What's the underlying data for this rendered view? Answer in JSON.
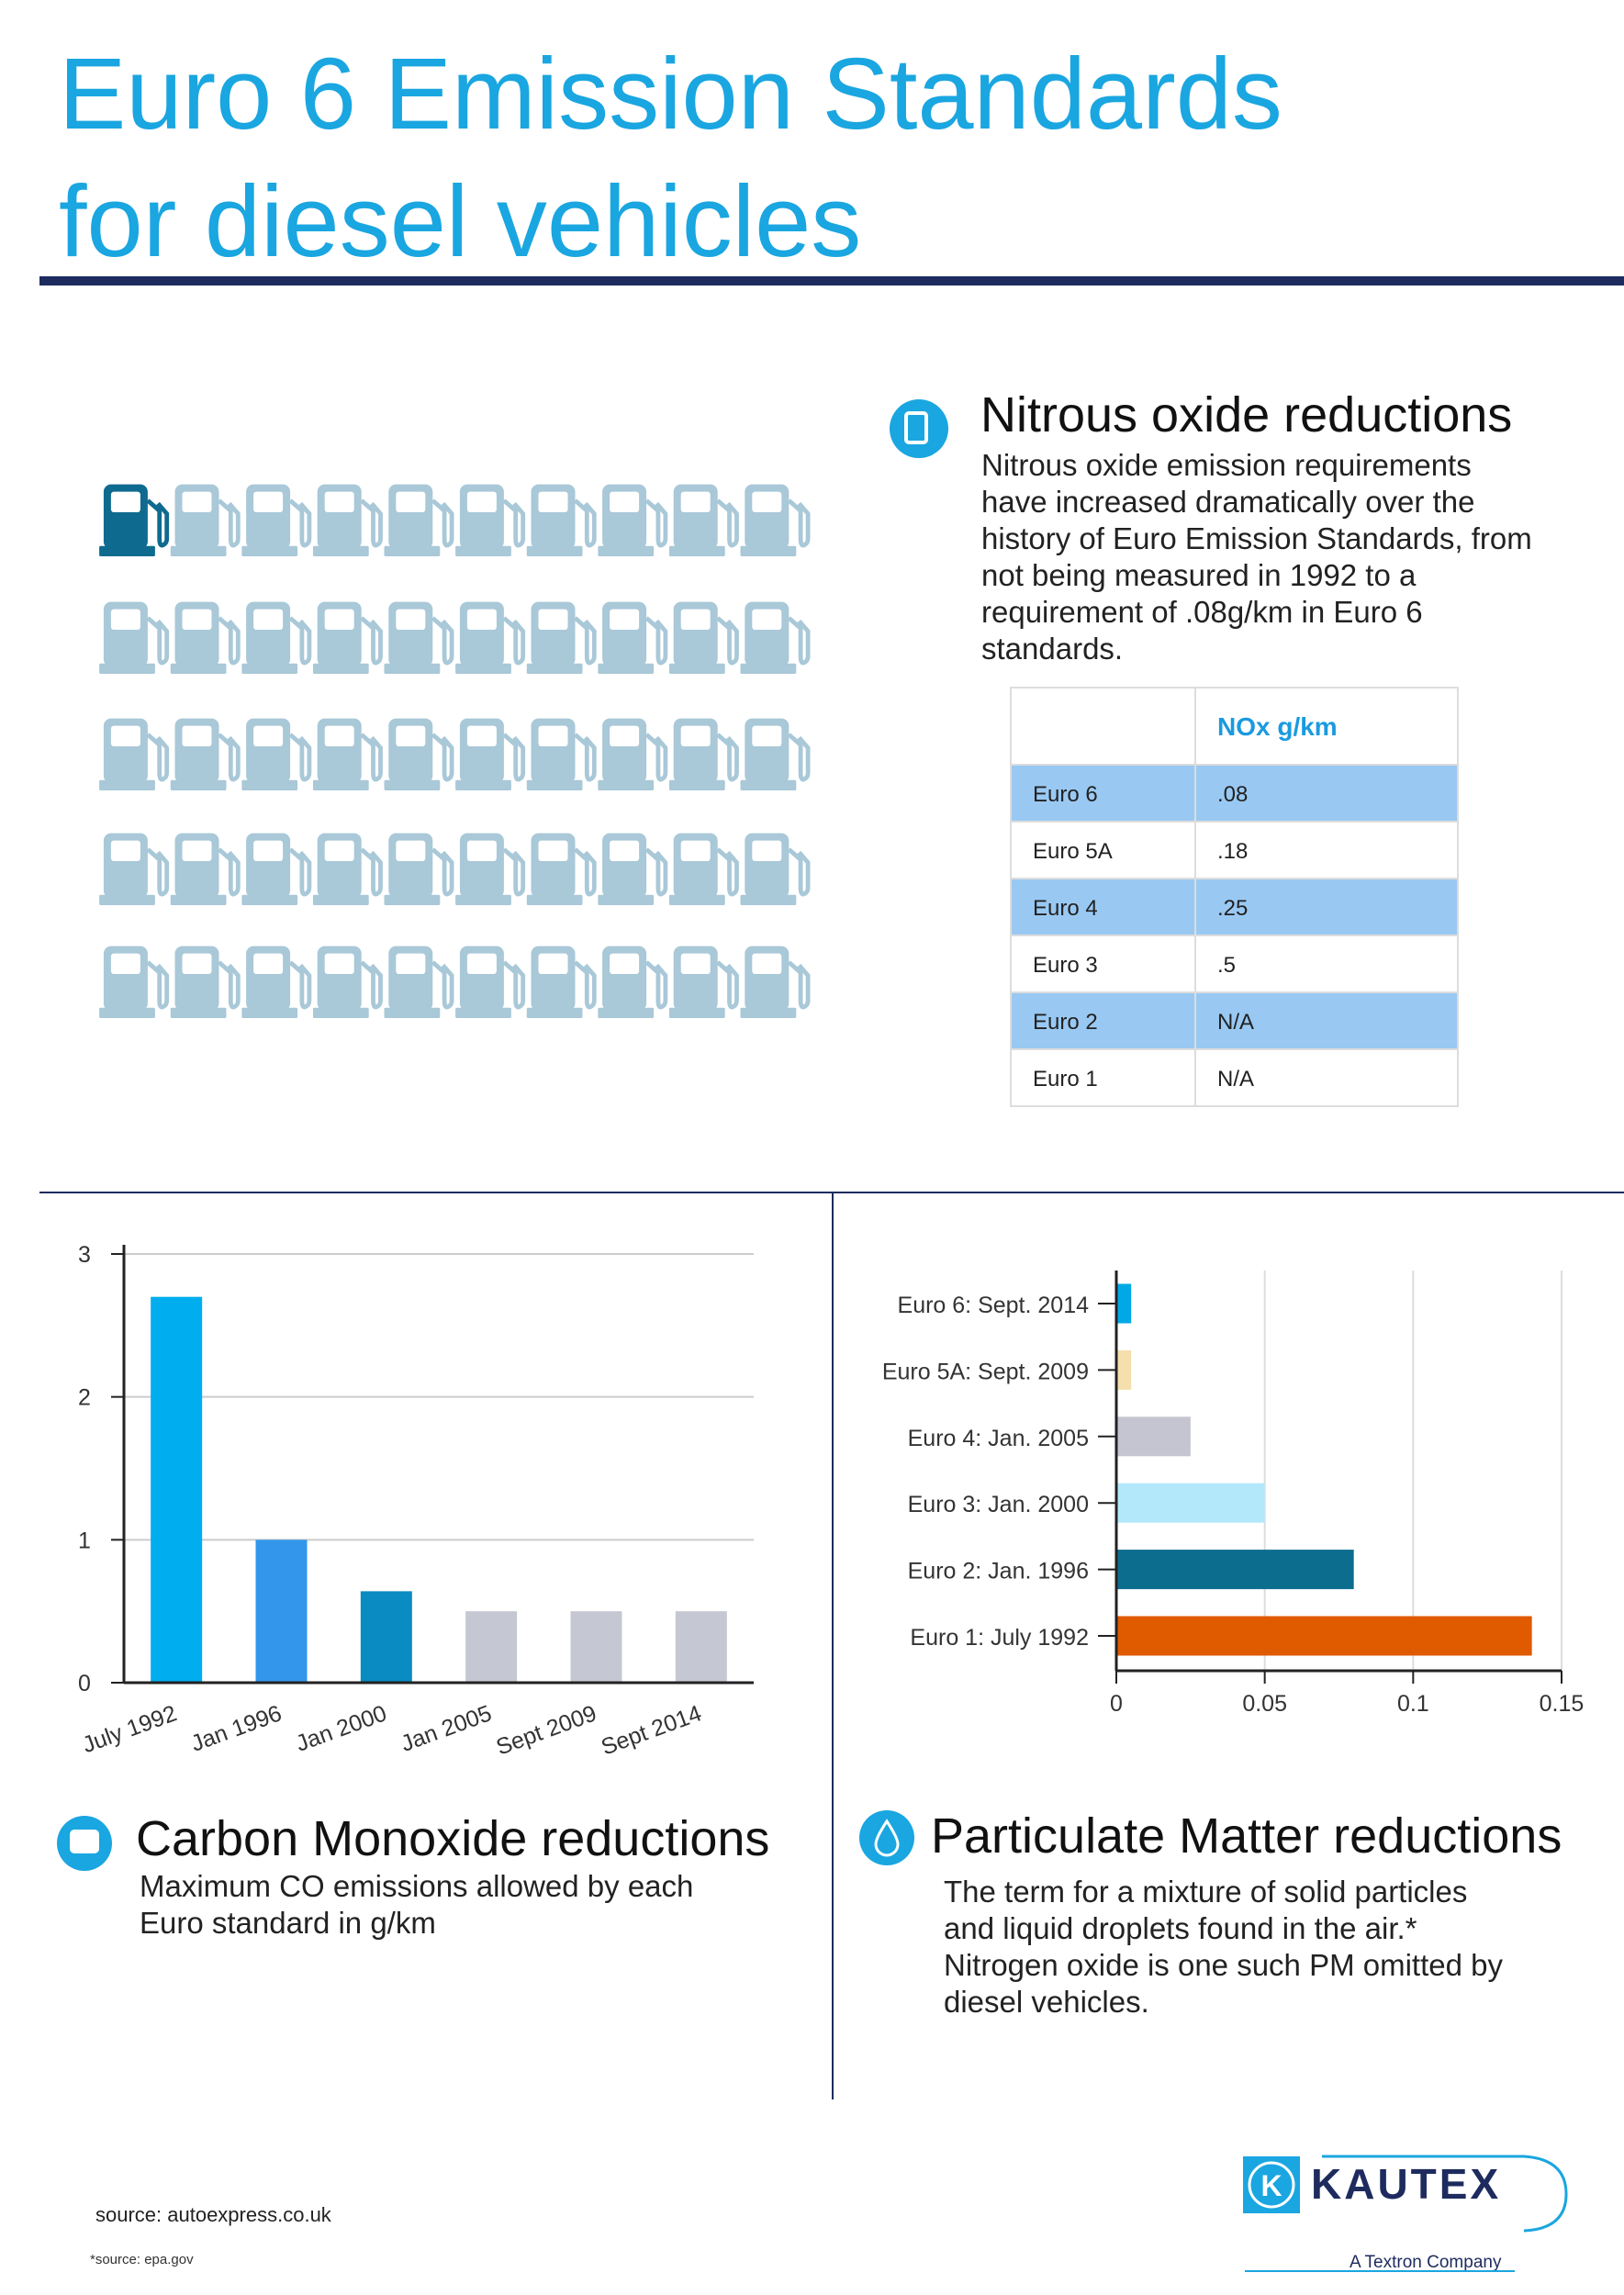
{
  "header": {
    "title": [
      "Euro 6 Emission Standards",
      "for diesel vehicles"
    ]
  },
  "nitrous": {
    "heading": "Nitrous oxide reductions",
    "text": [
      "Nitrous oxide emission requirements",
      "have increased dramatically over the",
      "history of Euro Emission Standards, from",
      "not being measured in 1992 to a",
      "requirement of .08g/km in Euro 6",
      "standards."
    ],
    "table": {
      "column": "NOx g/km",
      "rows": [
        [
          "Euro 6",
          ".08"
        ],
        [
          "Euro 5A",
          ".18"
        ],
        [
          "Euro 4",
          ".25"
        ],
        [
          "Euro 3",
          ".5"
        ],
        [
          "Euro 2",
          "N/A"
        ],
        [
          "Euro 1",
          "N/A"
        ]
      ]
    }
  },
  "chart_data": [
    {
      "type": "bar",
      "categories": [
        "July 1992",
        "Jan 1996",
        "Jan 2000",
        "Jan 2005",
        "Sept 2009",
        "Sept 2014"
      ],
      "values": [
        2.7,
        1.0,
        0.64,
        0.5,
        0.5,
        0.5
      ],
      "colors": [
        "#00adee",
        "#3396ea",
        "#0a8bc2",
        "#c5c8d2",
        "#c5c8d2",
        "#c5c8d2"
      ],
      "ylim": [
        0,
        3
      ],
      "yticks": [
        0,
        1,
        2,
        3
      ],
      "grid": true
    },
    {
      "type": "barh",
      "categories": [
        "Euro 6: Sept. 2014",
        "Euro 5A: Sept. 2009",
        "Euro 4: Jan. 2005",
        "Euro 3: Jan. 2000",
        "Euro 2: Jan. 1996",
        "Euro 1: July 1992"
      ],
      "values": [
        0.005,
        0.005,
        0.025,
        0.05,
        0.08,
        0.14
      ],
      "colors": [
        "#00a9e6",
        "#f5dfad",
        "#c5c5d1",
        "#b3e8fb",
        "#0c6d8f",
        "#e05a00"
      ],
      "xlim": [
        0,
        0.15
      ],
      "xticks": [
        0,
        0.05,
        0.1,
        0.15
      ],
      "grid": true
    }
  ],
  "carbon": {
    "heading": "Carbon Monoxide reductions",
    "text": [
      "Maximum CO emissions allowed by each",
      "Euro standard in g/km"
    ]
  },
  "particulate": {
    "heading": "Particulate Matter reductions",
    "text": [
      "The term for a mixture of solid particles",
      "and liquid droplets found in the air.*",
      "Nitrogen oxide is one such PM omitted by",
      "diesel vehicles."
    ]
  },
  "footer": {
    "sources": [
      "source: autoexpress.co.uk",
      "*source: epa.gov"
    ]
  },
  "logo": {
    "name": "KAUTEX",
    "tagline": "A Textron Company"
  }
}
